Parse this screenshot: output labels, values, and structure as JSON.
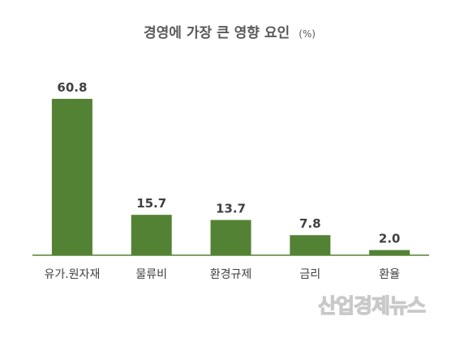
{
  "chart_data": {
    "type": "bar",
    "title": "경영에 가장 큰 영향 요인",
    "unit": "(%)",
    "categories": [
      "유가.원자재",
      "물류비",
      "환경규제",
      "금리",
      "환율"
    ],
    "values": [
      60.8,
      15.7,
      13.7,
      7.8,
      2.0
    ],
    "value_labels": [
      "60.8",
      "15.7",
      "13.7",
      "7.8",
      "2.0"
    ],
    "ylim": [
      0,
      60.8
    ],
    "grid": false,
    "legend": "none",
    "bar_color": "#548235",
    "axis_color": "#548235"
  },
  "watermark": "산업경제뉴스"
}
